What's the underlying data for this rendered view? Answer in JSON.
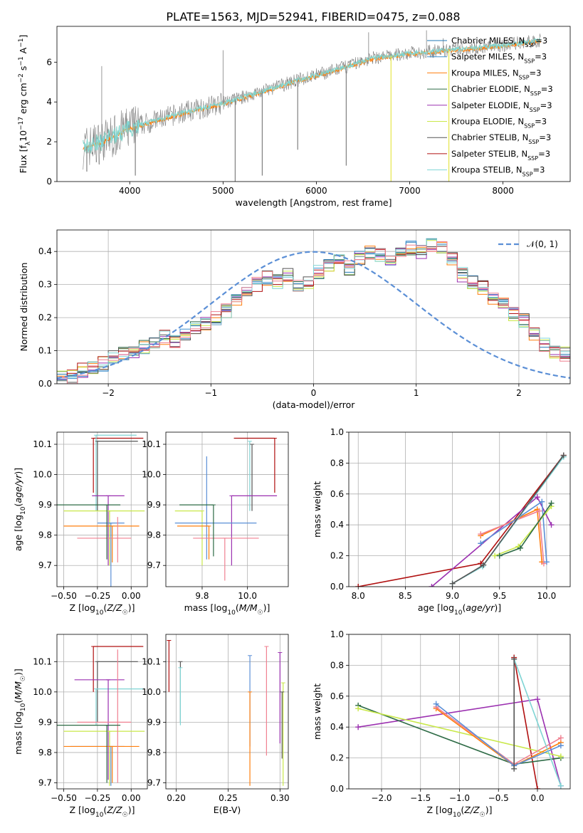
{
  "title": "PLATE=1563, MJD=52941, FIBERID=0475, z=0.088",
  "legend_top": [
    {
      "name": "Chabrier MILES, N",
      "sub": "SSP",
      "suffix": "=3",
      "color": "#1f77b4"
    },
    {
      "name": "Salpeter MILES, N",
      "sub": "SSP",
      "suffix": "=3",
      "color": "#3a8fd0"
    },
    {
      "name": "Kroupa MILES, N",
      "sub": "SSP",
      "suffix": "=3",
      "color": "#ff7f0e"
    },
    {
      "name": "Chabrier ELODIE, N",
      "sub": "SSP",
      "suffix": "=3",
      "color": "#2e6b46"
    },
    {
      "name": "Salpeter ELODIE, N",
      "sub": "SSP",
      "suffix": "=3",
      "color": "#9b30b0"
    },
    {
      "name": "Kroupa ELODIE, N",
      "sub": "SSP",
      "suffix": "=3",
      "color": "#c9e84a"
    },
    {
      "name": "Chabrier STELIB, N",
      "sub": "SSP",
      "suffix": "=3",
      "color": "#555555"
    },
    {
      "name": "Salpeter STELIB, N",
      "sub": "SSP",
      "suffix": "=3",
      "color": "#b01010"
    },
    {
      "name": "Kroupa STELIB, N",
      "sub": "SSP",
      "suffix": "=3",
      "color": "#7fd4d4"
    }
  ],
  "legend_hist": "𝒩(0, 1)",
  "colors": {
    "data": "#808080",
    "model_cyan": "#7fd4d4",
    "model_yellow": "#e6e64a",
    "model_orange": "#ff7f0e",
    "gauss": "#5b8fd6",
    "grid": "#b0b0b0"
  },
  "chart_data": [
    {
      "id": "spectrum",
      "type": "line",
      "xlabel": "wavelength [Angstrom, rest frame]",
      "ylabel": "Flux [f_λ 10^-17 erg cm^-2 s^-1 A^-1]",
      "xlim": [
        3220,
        8720
      ],
      "ylim": [
        0,
        7.8
      ],
      "xticks": [
        4000,
        5000,
        6000,
        7000,
        8000
      ],
      "yticks": [
        0,
        2,
        4,
        6
      ],
      "continuum": {
        "x": [
          3500,
          3700,
          4000,
          4300,
          4600,
          5000,
          5400,
          5800,
          6200,
          6600,
          7000,
          7400,
          8000,
          8400
        ],
        "y": [
          1.7,
          2.0,
          2.7,
          3.1,
          3.5,
          3.95,
          4.5,
          5.1,
          5.6,
          6.2,
          6.45,
          6.6,
          6.85,
          7.1
        ]
      },
      "absorption_lines": [
        {
          "x": 3540,
          "y": 0.5
        },
        {
          "x": 4060,
          "y": 0.3
        },
        {
          "x": 5130,
          "y": 0.0
        },
        {
          "x": 5420,
          "y": 0.3
        },
        {
          "x": 5800,
          "y": 1.6
        },
        {
          "x": 6320,
          "y": 0.8
        },
        {
          "x": 6800,
          "y": 0.0
        },
        {
          "x": 7420,
          "y": 0.0
        }
      ],
      "emission_lines": [
        {
          "x": 3700,
          "y": 5.8
        },
        {
          "x": 5000,
          "y": 6.6
        },
        {
          "x": 6560,
          "y": 7.5
        },
        {
          "x": 7180,
          "y": 7.6
        },
        {
          "x": 7360,
          "y": 7.2
        }
      ]
    },
    {
      "id": "residuals",
      "type": "histogram",
      "xlabel": "(data-model)/error",
      "ylabel": "Normed distribution",
      "xlim": [
        -2.5,
        2.5
      ],
      "ylim": [
        0,
        0.465
      ],
      "xticks": [
        -2,
        -1,
        0,
        1,
        2
      ],
      "yticks": [
        0.0,
        0.1,
        0.2,
        0.3,
        0.4
      ],
      "bin_edges_start": -2.5,
      "bin_width": 0.1,
      "values": [
        0.03,
        0.02,
        0.04,
        0.05,
        0.06,
        0.08,
        0.09,
        0.1,
        0.11,
        0.12,
        0.14,
        0.13,
        0.15,
        0.17,
        0.18,
        0.2,
        0.22,
        0.25,
        0.28,
        0.3,
        0.32,
        0.31,
        0.33,
        0.3,
        0.31,
        0.34,
        0.36,
        0.37,
        0.35,
        0.38,
        0.4,
        0.39,
        0.37,
        0.39,
        0.41,
        0.4,
        0.42,
        0.41,
        0.38,
        0.33,
        0.31,
        0.29,
        0.26,
        0.24,
        0.21,
        0.19,
        0.15,
        0.12,
        0.1,
        0.09
      ]
    },
    {
      "id": "age_vs_z",
      "type": "scatter",
      "xlabel": "Z [log10(Z/Z☉)]",
      "ylabel": "age [log10(age/yr)]",
      "xlim": [
        -0.55,
        0.12
      ],
      "ylim": [
        9.63,
        10.14
      ],
      "xticks": [
        -0.5,
        -0.25,
        0.0
      ],
      "yticks": [
        9.7,
        9.8,
        9.9,
        10.0,
        10.1
      ],
      "points": [
        {
          "x": -0.28,
          "y": 10.12,
          "xerr": [
            0.0,
            0.37
          ],
          "yerr": [
            0.18,
            0.0
          ],
          "c": "#b01010"
        },
        {
          "x": -0.26,
          "y": 10.13,
          "xerr": [
            0.0,
            0.3
          ],
          "yerr": [
            0.25,
            0.0
          ],
          "c": "#7fd4d4"
        },
        {
          "x": -0.25,
          "y": 10.11,
          "xerr": [
            0.0,
            0.3
          ],
          "yerr": [
            0.23,
            0.0
          ],
          "c": "#555555"
        },
        {
          "x": -0.17,
          "y": 9.93,
          "xerr": [
            0.12,
            0.12
          ],
          "yerr": [
            0.23,
            0.0
          ],
          "c": "#9b30b0"
        },
        {
          "x": -0.16,
          "y": 9.88,
          "xerr": [
            0.34,
            0.26
          ],
          "yerr": [
            0.18,
            0.0
          ],
          "c": "#c9e84a"
        },
        {
          "x": -0.15,
          "y": 9.84,
          "xerr": [
            0.1,
            0.1
          ],
          "yerr": [
            0.28,
            0.0
          ],
          "c": "#5b8fd6"
        },
        {
          "x": -0.14,
          "y": 9.83,
          "xerr": [
            0.36,
            0.2
          ],
          "yerr": [
            0.12,
            0.0
          ],
          "c": "#ff7f0e"
        },
        {
          "x": -0.1,
          "y": 9.79,
          "xerr": [
            0.3,
            0.1
          ],
          "yerr": [
            0.08,
            0.07
          ],
          "c": "#f08090"
        },
        {
          "x": -0.18,
          "y": 9.9,
          "xerr": [
            0.37,
            0.1
          ],
          "yerr": [
            0.18,
            0.0
          ],
          "c": "#2e6b46"
        }
      ]
    },
    {
      "id": "age_vs_mass",
      "type": "scatter",
      "xlabel": "mass [log10(M/M☉)]",
      "ylabel": "",
      "xlim": [
        9.64,
        10.18
      ],
      "ylim": [
        9.63,
        10.14
      ],
      "xticks": [
        9.8,
        10.0
      ],
      "yticks": [
        9.7,
        9.8,
        9.9,
        10.0,
        10.1
      ],
      "points": [
        {
          "x": 10.12,
          "y": 10.12,
          "xerr": [
            0.18,
            0.0
          ],
          "yerr": [
            0.18,
            0.0
          ],
          "c": "#b01010"
        },
        {
          "x": 10.01,
          "y": 10.11,
          "xerr": [
            0.0,
            0.0
          ],
          "yerr": [
            0.23,
            0.0
          ],
          "c": "#7fd4d4"
        },
        {
          "x": 10.02,
          "y": 10.1,
          "xerr": [
            0.0,
            0.0
          ],
          "yerr": [
            0.22,
            0.0
          ],
          "c": "#555555"
        },
        {
          "x": 9.93,
          "y": 9.93,
          "xerr": [
            0.0,
            0.2
          ],
          "yerr": [
            0.23,
            0.0
          ],
          "c": "#9b30b0"
        },
        {
          "x": 9.8,
          "y": 9.88,
          "xerr": [
            0.12,
            0.0
          ],
          "yerr": [
            0.18,
            0.0
          ],
          "c": "#c9e84a"
        },
        {
          "x": 9.82,
          "y": 9.84,
          "xerr": [
            0.14,
            0.22
          ],
          "yerr": [
            0.12,
            0.22
          ],
          "c": "#5b8fd6"
        },
        {
          "x": 9.83,
          "y": 9.83,
          "xerr": [
            0.14,
            0.0
          ],
          "yerr": [
            0.11,
            0.0
          ],
          "c": "#ff7f0e"
        },
        {
          "x": 9.9,
          "y": 9.79,
          "xerr": [
            0.14,
            0.15
          ],
          "yerr": [
            0.14,
            0.0
          ],
          "c": "#f08090"
        },
        {
          "x": 9.85,
          "y": 9.9,
          "xerr": [
            0.15,
            0.0
          ],
          "yerr": [
            0.17,
            0.0
          ],
          "c": "#2e6b46"
        }
      ]
    },
    {
      "id": "weight_vs_age",
      "type": "line",
      "xlabel": "age [log10(age/yr)]",
      "ylabel": "mass weight",
      "xlim": [
        7.9,
        10.25
      ],
      "ylim": [
        0,
        1.0
      ],
      "xticks": [
        8.0,
        8.5,
        9.0,
        9.5,
        10.0
      ],
      "yticks": [
        0.0,
        0.2,
        0.4,
        0.6,
        0.8,
        1.0
      ],
      "series": [
        {
          "c": "#b01010",
          "x": [
            8.0,
            9.3,
            10.18
          ],
          "y": [
            0.0,
            0.15,
            0.85
          ]
        },
        {
          "c": "#9b30b0",
          "x": [
            8.78,
            9.9,
            10.05
          ],
          "y": [
            0.0,
            0.58,
            0.4
          ]
        },
        {
          "c": "#ff7f0e",
          "x": [
            9.3,
            9.9,
            9.95
          ],
          "y": [
            0.33,
            0.5,
            0.16
          ]
        },
        {
          "c": "#f08090",
          "x": [
            9.3,
            9.92,
            9.97
          ],
          "y": [
            0.34,
            0.49,
            0.15
          ]
        },
        {
          "c": "#5b8fd6",
          "x": [
            9.3,
            9.95,
            10.0
          ],
          "y": [
            0.28,
            0.55,
            0.16
          ]
        },
        {
          "c": "#c9e84a",
          "x": [
            9.45,
            9.7,
            10.05
          ],
          "y": [
            0.2,
            0.26,
            0.52
          ]
        },
        {
          "c": "#2e6b46",
          "x": [
            9.5,
            9.72,
            10.05
          ],
          "y": [
            0.2,
            0.25,
            0.54
          ]
        },
        {
          "c": "#7fd4d4",
          "x": [
            9.0,
            9.32,
            10.18
          ],
          "y": [
            0.02,
            0.13,
            0.84
          ]
        },
        {
          "c": "#555555",
          "x": [
            9.0,
            9.33,
            10.18
          ],
          "y": [
            0.02,
            0.14,
            0.85
          ]
        }
      ]
    },
    {
      "id": "mass_vs_z",
      "type": "scatter",
      "xlabel": "Z [log10(Z/Z☉)]",
      "ylabel": "mass [log10(M/M☉)]",
      "xlim": [
        -0.55,
        0.12
      ],
      "ylim": [
        9.68,
        10.19
      ],
      "xticks": [
        -0.5,
        -0.25,
        0.0
      ],
      "yticks": [
        9.7,
        9.8,
        9.9,
        10.0,
        10.1
      ],
      "points": [
        {
          "x": -0.28,
          "y": 10.15,
          "xerr": [
            0.0,
            0.37
          ],
          "yerr": [
            0.15,
            0.0
          ],
          "c": "#b01010"
        },
        {
          "x": -0.25,
          "y": 10.1,
          "xerr": [
            0.0,
            0.3
          ],
          "yerr": [
            0.2,
            0.0
          ],
          "c": "#555555"
        },
        {
          "x": -0.26,
          "y": 10.01,
          "xerr": [
            0.0,
            0.35
          ],
          "yerr": [
            0.12,
            0.0
          ],
          "c": "#7fd4d4"
        },
        {
          "x": -0.17,
          "y": 10.04,
          "xerr": [
            0.25,
            0.12
          ],
          "yerr": [
            0.33,
            0.0
          ],
          "c": "#9b30b0"
        },
        {
          "x": -0.16,
          "y": 9.87,
          "xerr": [
            0.34,
            0.26
          ],
          "yerr": [
            0.18,
            0.0
          ],
          "c": "#c9e84a"
        },
        {
          "x": -0.15,
          "y": 9.82,
          "xerr": [
            0.3,
            0.1
          ],
          "yerr": [
            0.13,
            0.0
          ],
          "c": "#5b8fd6"
        },
        {
          "x": -0.14,
          "y": 9.82,
          "xerr": [
            0.36,
            0.2
          ],
          "yerr": [
            0.12,
            0.0
          ],
          "c": "#ff7f0e"
        },
        {
          "x": -0.1,
          "y": 9.9,
          "xerr": [
            0.3,
            0.1
          ],
          "yerr": [
            0.2,
            0.24
          ],
          "c": "#f08090"
        },
        {
          "x": -0.18,
          "y": 9.89,
          "xerr": [
            0.37,
            0.1
          ],
          "yerr": [
            0.19,
            0.0
          ],
          "c": "#2e6b46"
        }
      ]
    },
    {
      "id": "mass_vs_ebv",
      "type": "scatter",
      "xlabel": "E(B-V)",
      "ylabel": "",
      "xlim": [
        0.19,
        0.308
      ],
      "ylim": [
        9.68,
        10.19
      ],
      "xticks": [
        0.2,
        0.25,
        0.3
      ],
      "yticks": [
        9.7,
        9.8,
        9.9,
        10.0,
        10.1
      ],
      "points": [
        {
          "x": 0.193,
          "y": 10.17,
          "yerr": [
            0.17,
            0.0
          ],
          "c": "#b01010"
        },
        {
          "x": 0.204,
          "y": 10.1,
          "yerr": [
            0.2,
            0.0
          ],
          "c": "#555555"
        },
        {
          "x": 0.204,
          "y": 10.08,
          "yerr": [
            0.19,
            0.0
          ],
          "c": "#7fd4d4"
        },
        {
          "x": 0.271,
          "y": 10.12,
          "yerr": [
            0.3,
            0.0
          ],
          "c": "#5b8fd6"
        },
        {
          "x": 0.271,
          "y": 10.0,
          "yerr": [
            0.31,
            0.0
          ],
          "c": "#ff7f0e"
        },
        {
          "x": 0.287,
          "y": 10.15,
          "yerr": [
            0.36,
            0.0
          ],
          "c": "#f08090"
        },
        {
          "x": 0.3,
          "y": 10.13,
          "yerr": [
            0.3,
            0.0
          ],
          "c": "#9b30b0"
        },
        {
          "x": 0.303,
          "y": 10.03,
          "yerr": [
            0.34,
            0.0
          ],
          "c": "#c9e84a"
        },
        {
          "x": 0.302,
          "y": 10.0,
          "yerr": [
            0.22,
            0.0
          ],
          "c": "#555555"
        }
      ]
    },
    {
      "id": "weight_vs_z",
      "type": "line",
      "xlabel": "Z [log10(Z/Z☉)]",
      "ylabel": "mass weight",
      "xlim": [
        -2.42,
        0.42
      ],
      "ylim": [
        0,
        1.0
      ],
      "xticks": [
        -2.0,
        -1.5,
        -1.0,
        -0.5,
        0.0
      ],
      "yticks": [
        0.0,
        0.2,
        0.4,
        0.6,
        0.8,
        1.0
      ],
      "series": [
        {
          "c": "#b01010",
          "x": [
            -0.3,
            0.0
          ],
          "y": [
            0.85,
            0.0
          ]
        },
        {
          "c": "#9b30b0",
          "x": [
            -2.3,
            0.0,
            0.3
          ],
          "y": [
            0.4,
            0.58,
            0.02
          ]
        },
        {
          "c": "#2e6b46",
          "x": [
            -2.3,
            -0.3,
            0.3
          ],
          "y": [
            0.54,
            0.16,
            0.2
          ]
        },
        {
          "c": "#c9e84a",
          "x": [
            -2.3,
            0.3
          ],
          "y": [
            0.52,
            0.21
          ]
        },
        {
          "c": "#ff7f0e",
          "x": [
            -1.3,
            -0.3,
            0.3
          ],
          "y": [
            0.52,
            0.15,
            0.3
          ]
        },
        {
          "c": "#f08090",
          "x": [
            -1.3,
            -0.3,
            0.3
          ],
          "y": [
            0.53,
            0.16,
            0.33
          ]
        },
        {
          "c": "#5b8fd6",
          "x": [
            -1.3,
            -0.3,
            0.3
          ],
          "y": [
            0.55,
            0.15,
            0.28
          ]
        },
        {
          "c": "#7fd4d4",
          "x": [
            -0.3,
            0.3
          ],
          "y": [
            0.84,
            0.02
          ]
        },
        {
          "c": "#555555",
          "x": [
            -0.3,
            -0.3
          ],
          "y": [
            0.84,
            0.13
          ]
        }
      ]
    }
  ]
}
